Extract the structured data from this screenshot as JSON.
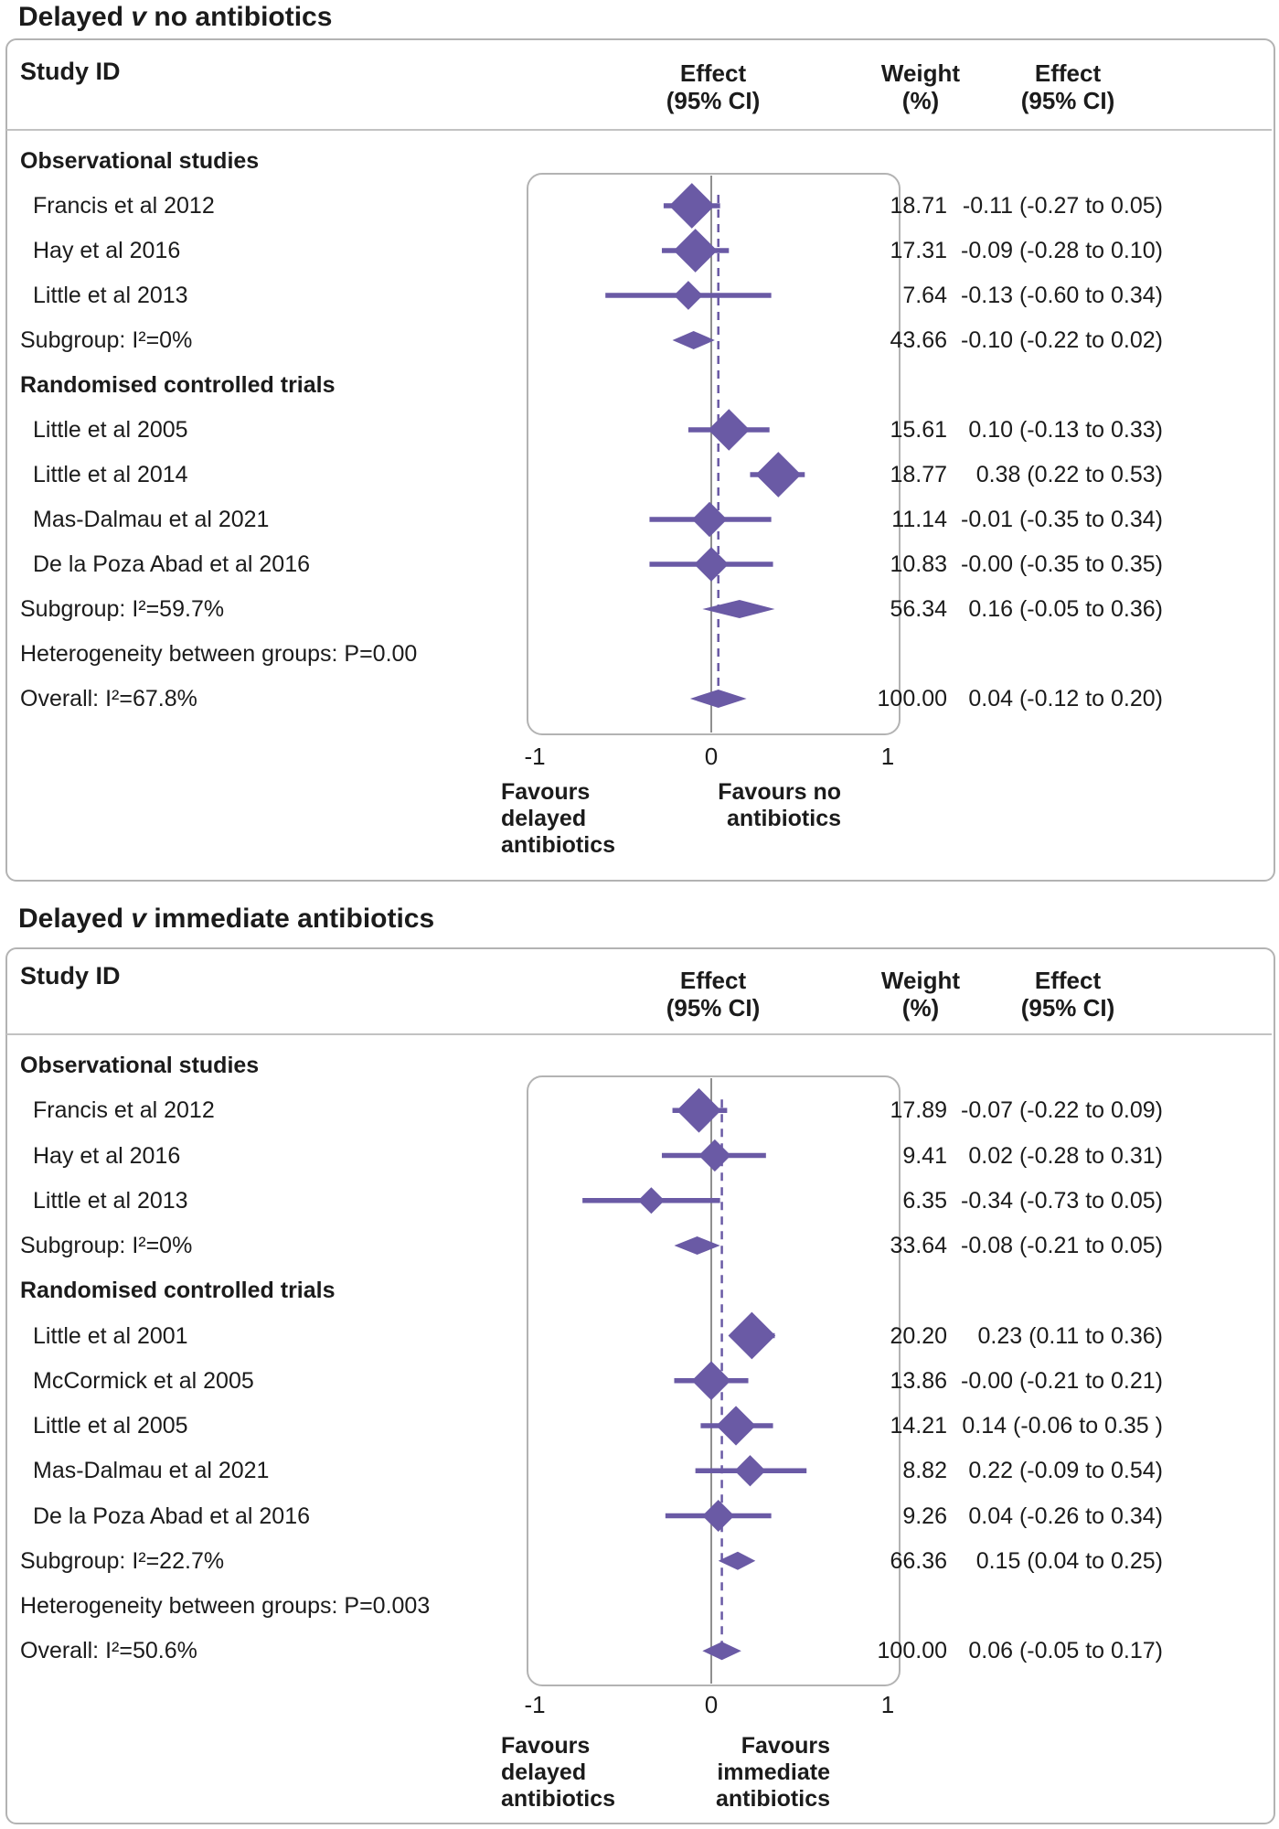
{
  "colors": {
    "diamond_purple": "#6a5aa5",
    "dashed_line_purple": "#6a5aa5",
    "null_line_gray": "#8f8f8f",
    "frame_gray": "#b3b3b3",
    "text": "#1b1b1b"
  },
  "chart_data": [
    {
      "type": "scatter",
      "subtype": "forest-plot",
      "title": {
        "lead": "Delayed ",
        "v": "v",
        "rest": " no antibiotics"
      },
      "header": {
        "study": "Study ID",
        "effect_plot": [
          "Effect",
          "(95% CI)"
        ],
        "weight": [
          "Weight",
          "(%)"
        ],
        "effect": [
          "Effect",
          "(95% CI)"
        ]
      },
      "xlim": [
        -1,
        1
      ],
      "xticks": [
        "-1",
        "0",
        "1"
      ],
      "null_line_x": 0,
      "overall_dashed_x": 0.04,
      "favours_left": [
        "Favours",
        "delayed",
        "antibiotics"
      ],
      "favours_right": [
        "Favours no",
        "antibiotics"
      ],
      "rows": [
        {
          "kind": "heading",
          "label": "Observational studies"
        },
        {
          "kind": "study",
          "label": "Francis et al 2012",
          "weight": "18.71",
          "w": 18.71,
          "est": -0.11,
          "lo": -0.27,
          "hi": 0.05,
          "effect_label": "-0.11 (-0.27 to 0.05)"
        },
        {
          "kind": "study",
          "label": "Hay et al 2016",
          "weight": "17.31",
          "w": 17.31,
          "est": -0.09,
          "lo": -0.28,
          "hi": 0.1,
          "effect_label": "-0.09 (-0.28 to 0.10)"
        },
        {
          "kind": "study",
          "label": "Little et al 2013",
          "weight": "7.64",
          "w": 7.64,
          "est": -0.13,
          "lo": -0.6,
          "hi": 0.34,
          "effect_label": "-0.13 (-0.60 to 0.34)"
        },
        {
          "kind": "pooled",
          "label": "Subgroup: I²=0%",
          "weight": "43.66",
          "est": -0.1,
          "lo": -0.22,
          "hi": 0.02,
          "effect_label": "-0.10 (-0.22 to 0.02)"
        },
        {
          "kind": "heading",
          "label": "Randomised controlled trials"
        },
        {
          "kind": "study",
          "label": "Little et al 2005",
          "weight": "15.61",
          "w": 15.61,
          "est": 0.1,
          "lo": -0.13,
          "hi": 0.33,
          "effect_label": "0.10 (-0.13 to 0.33)"
        },
        {
          "kind": "study",
          "label": "Little et al 2014",
          "weight": "18.77",
          "w": 18.77,
          "est": 0.38,
          "lo": 0.22,
          "hi": 0.53,
          "effect_label": "0.38 (0.22 to 0.53)"
        },
        {
          "kind": "study",
          "label": "Mas-Dalmau et al 2021",
          "weight": "11.14",
          "w": 11.14,
          "est": -0.01,
          "lo": -0.35,
          "hi": 0.34,
          "effect_label": "-0.01 (-0.35 to 0.34)"
        },
        {
          "kind": "study",
          "label": "De la Poza Abad et al 2016",
          "weight": "10.83",
          "w": 10.83,
          "est": 0.0,
          "lo": -0.35,
          "hi": 0.35,
          "effect_label": "-0.00 (-0.35 to 0.35)"
        },
        {
          "kind": "pooled",
          "label": "Subgroup: I²=59.7%",
          "weight": "56.34",
          "est": 0.16,
          "lo": -0.05,
          "hi": 0.36,
          "effect_label": "0.16 (-0.05 to 0.36)"
        },
        {
          "kind": "note",
          "label": "Heterogeneity between groups: P=0.00"
        },
        {
          "kind": "pooled",
          "label": "Overall: I²=67.8%",
          "weight": "100.00",
          "est": 0.04,
          "lo": -0.12,
          "hi": 0.2,
          "effect_label": "0.04 (-0.12 to 0.20)"
        }
      ]
    },
    {
      "type": "scatter",
      "subtype": "forest-plot",
      "title": {
        "lead": "Delayed ",
        "v": "v",
        "rest": " immediate antibiotics"
      },
      "header": {
        "study": "Study ID",
        "effect_plot": [
          "Effect",
          "(95% CI)"
        ],
        "weight": [
          "Weight",
          "(%)"
        ],
        "effect": [
          "Effect",
          "(95% CI)"
        ]
      },
      "xlim": [
        -1,
        1
      ],
      "xticks": [
        "-1",
        "0",
        "1"
      ],
      "null_line_x": 0,
      "overall_dashed_x": 0.06,
      "favours_left": [
        "Favours",
        "delayed",
        "antibiotics"
      ],
      "favours_right": [
        "Favours",
        "immediate",
        "antibiotics"
      ],
      "rows": [
        {
          "kind": "heading",
          "label": "Observational studies"
        },
        {
          "kind": "study",
          "label": "Francis et al 2012",
          "weight": "17.89",
          "w": 17.89,
          "est": -0.07,
          "lo": -0.22,
          "hi": 0.09,
          "effect_label": "-0.07 (-0.22 to 0.09)"
        },
        {
          "kind": "study",
          "label": "Hay et al 2016",
          "weight": "9.41",
          "w": 9.41,
          "est": 0.02,
          "lo": -0.28,
          "hi": 0.31,
          "effect_label": "0.02 (-0.28 to 0.31)"
        },
        {
          "kind": "study",
          "label": "Little et al 2013",
          "weight": "6.35",
          "w": 6.35,
          "est": -0.34,
          "lo": -0.73,
          "hi": 0.05,
          "effect_label": "-0.34 (-0.73 to 0.05)"
        },
        {
          "kind": "pooled",
          "label": "Subgroup: I²=0%",
          "weight": "33.64",
          "est": -0.08,
          "lo": -0.21,
          "hi": 0.05,
          "effect_label": "-0.08 (-0.21 to 0.05)"
        },
        {
          "kind": "heading",
          "label": "Randomised controlled trials"
        },
        {
          "kind": "study",
          "label": "Little et al 2001",
          "weight": "20.20",
          "w": 20.2,
          "est": 0.23,
          "lo": 0.11,
          "hi": 0.36,
          "effect_label": "0.23 (0.11 to 0.36)"
        },
        {
          "kind": "study",
          "label": "McCormick et al 2005",
          "weight": "13.86",
          "w": 13.86,
          "est": 0.0,
          "lo": -0.21,
          "hi": 0.21,
          "effect_label": "-0.00 (-0.21 to 0.21)"
        },
        {
          "kind": "study",
          "label": "Little et al 2005",
          "weight": "14.21",
          "w": 14.21,
          "est": 0.14,
          "lo": -0.06,
          "hi": 0.35,
          "effect_label": "0.14 (-0.06 to 0.35 )"
        },
        {
          "kind": "study",
          "label": "Mas-Dalmau et al 2021",
          "weight": "8.82",
          "w": 8.82,
          "est": 0.22,
          "lo": -0.09,
          "hi": 0.54,
          "effect_label": "0.22 (-0.09 to 0.54)"
        },
        {
          "kind": "study",
          "label": "De la Poza Abad et al 2016",
          "weight": "9.26",
          "w": 9.26,
          "est": 0.04,
          "lo": -0.26,
          "hi": 0.34,
          "effect_label": "0.04 (-0.26 to 0.34)"
        },
        {
          "kind": "pooled",
          "label": "Subgroup: I²=22.7%",
          "weight": "66.36",
          "est": 0.15,
          "lo": 0.04,
          "hi": 0.25,
          "effect_label": "0.15 (0.04 to 0.25)"
        },
        {
          "kind": "note",
          "label": "Heterogeneity between groups: P=0.003"
        },
        {
          "kind": "pooled",
          "label": "Overall: I²=50.6%",
          "weight": "100.00",
          "est": 0.06,
          "lo": -0.05,
          "hi": 0.17,
          "effect_label": "0.06 (-0.05 to 0.17)"
        }
      ]
    }
  ]
}
